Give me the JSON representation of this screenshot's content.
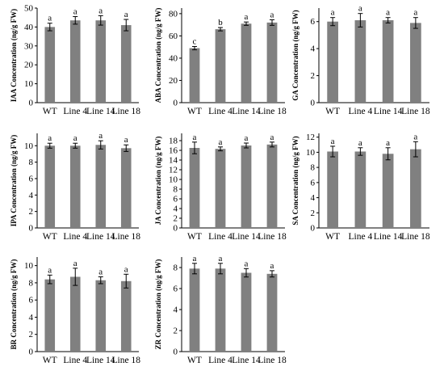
{
  "colors": {
    "bar": "#808080",
    "axis": "#000000",
    "error": "#000000"
  },
  "chart_data": [
    {
      "type": "bar",
      "title": "",
      "xlabel": "",
      "ylabel": "IAA Concentration (ng/g FW)",
      "categories": [
        "WT",
        "Line 4",
        "Line 14",
        "Line 18"
      ],
      "values": [
        40,
        43.5,
        43.5,
        41
      ],
      "errors": [
        2,
        2,
        2.5,
        3
      ],
      "significance": [
        "a",
        "a",
        "a",
        "a"
      ],
      "ylim": [
        0,
        50
      ],
      "yticks": [
        0,
        10,
        20,
        30,
        40,
        50
      ],
      "grid": false,
      "legend": "none"
    },
    {
      "type": "bar",
      "title": "",
      "xlabel": "",
      "ylabel": "ABA Concentration (ng/g FW)",
      "categories": [
        "WT",
        "Line 4",
        "Line 14",
        "Line 18"
      ],
      "values": [
        49,
        66,
        71,
        72
      ],
      "errors": [
        1.5,
        1.5,
        1.5,
        2.5
      ],
      "significance": [
        "c",
        "b",
        "a",
        "a"
      ],
      "ylim": [
        0,
        85
      ],
      "yticks": [
        0,
        20,
        40,
        60,
        80
      ],
      "grid": false,
      "legend": "none"
    },
    {
      "type": "bar",
      "title": "",
      "xlabel": "",
      "ylabel": "GA Concentration (ng/g FW)",
      "categories": [
        "WT",
        "Line 4",
        "Line 14",
        "Line 18"
      ],
      "values": [
        6.0,
        6.1,
        6.1,
        5.9
      ],
      "errors": [
        0.3,
        0.5,
        0.2,
        0.4
      ],
      "significance": [
        "a",
        "a",
        "a",
        "a"
      ],
      "ylim": [
        0,
        7
      ],
      "yticks": [
        0,
        2,
        4,
        6
      ],
      "grid": false,
      "legend": "none"
    },
    {
      "type": "bar",
      "title": "",
      "xlabel": "",
      "ylabel": "IPA Concentration (ng/g FW)",
      "categories": [
        "WT",
        "Line 4",
        "Line 14",
        "Line 18"
      ],
      "values": [
        10.0,
        10.0,
        10.1,
        9.7
      ],
      "errors": [
        0.3,
        0.3,
        0.5,
        0.4
      ],
      "significance": [
        "a",
        "a",
        "a",
        "a"
      ],
      "ylim": [
        0,
        11.5
      ],
      "yticks": [
        0,
        2,
        4,
        6,
        8,
        10
      ],
      "grid": false,
      "legend": "none"
    },
    {
      "type": "bar",
      "title": "",
      "xlabel": "",
      "ylabel": "JA Concentration (ng/g FW)",
      "categories": [
        "WT",
        "Line 4",
        "Line 14",
        "Line 18"
      ],
      "values": [
        16.5,
        16.3,
        17.0,
        17.2
      ],
      "errors": [
        1.2,
        0.4,
        0.5,
        0.5
      ],
      "significance": [
        "a",
        "a",
        "a",
        "a"
      ],
      "ylim": [
        0,
        19.5
      ],
      "yticks": [
        0,
        2,
        4,
        6,
        8,
        10,
        12,
        14,
        16,
        18
      ],
      "grid": false,
      "legend": "none"
    },
    {
      "type": "bar",
      "title": "",
      "xlabel": "",
      "ylabel": "SA Concentration (ng/g FW)",
      "categories": [
        "WT",
        "Line 4",
        "Line 14",
        "Line 18"
      ],
      "values": [
        10.1,
        10.1,
        9.8,
        10.4
      ],
      "errors": [
        0.7,
        0.5,
        0.8,
        1.0
      ],
      "significance": [
        "a",
        "a",
        "a",
        "a"
      ],
      "ylim": [
        0,
        12.5
      ],
      "yticks": [
        0,
        2,
        4,
        6,
        8,
        10,
        12
      ],
      "grid": false,
      "legend": "none"
    },
    {
      "type": "bar",
      "title": "",
      "xlabel": "",
      "ylabel": "BR Concentration (ng/g FW)",
      "categories": [
        "WT",
        "Line 4",
        "Line 14",
        "Line 18"
      ],
      "values": [
        8.4,
        8.7,
        8.3,
        8.2
      ],
      "errors": [
        0.5,
        1.0,
        0.4,
        0.8
      ],
      "significance": [
        "a",
        "a",
        "a",
        "a"
      ],
      "ylim": [
        0,
        11
      ],
      "yticks": [
        0,
        2,
        4,
        6,
        8,
        10
      ],
      "grid": false,
      "legend": "none"
    },
    {
      "type": "bar",
      "title": "",
      "xlabel": "",
      "ylabel": "ZR Concentration (ng/g FW)",
      "categories": [
        "WT",
        "Line 4",
        "Line 14",
        "Line 18"
      ],
      "values": [
        7.9,
        7.9,
        7.5,
        7.4
      ],
      "errors": [
        0.5,
        0.5,
        0.4,
        0.3
      ],
      "significance": [
        "a",
        "a",
        "a",
        "a"
      ],
      "ylim": [
        0,
        9
      ],
      "yticks": [
        0,
        2,
        4,
        6,
        8
      ],
      "grid": false,
      "legend": "none"
    }
  ]
}
